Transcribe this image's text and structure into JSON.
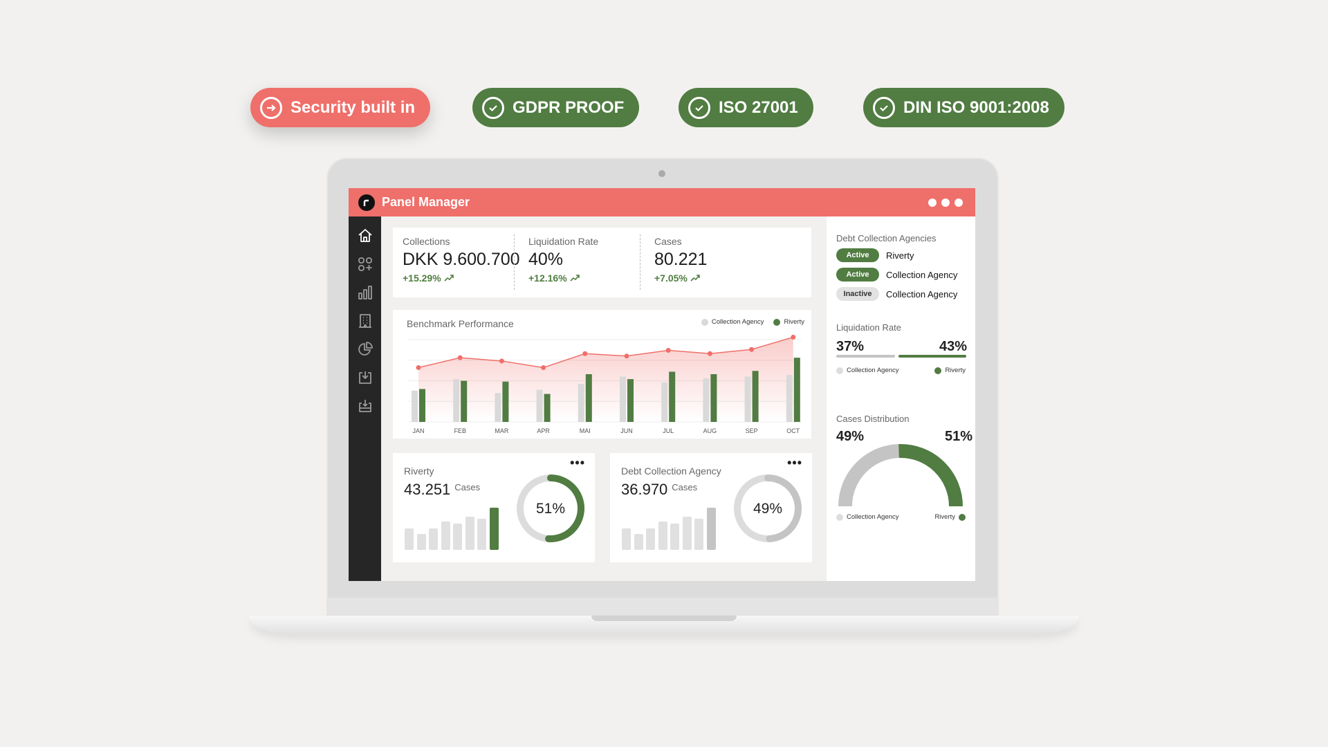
{
  "badges": [
    {
      "label": "Security built in",
      "icon": "arrow-right-circle-icon"
    },
    {
      "label": "GDPR PROOF",
      "icon": "check-circle-icon"
    },
    {
      "label": "ISO 27001",
      "icon": "check-circle-icon"
    },
    {
      "label": "DIN ISO 9001:2008",
      "icon": "check-circle-icon"
    }
  ],
  "colors": {
    "accent": "#ef6f6a",
    "green": "#517c42",
    "gray": "#d9d9d9",
    "sidebar": "#262626"
  },
  "app": {
    "title": "Panel Manager"
  },
  "sidebar": {
    "items": [
      "home-icon",
      "apps-add-icon",
      "bar-chart-icon",
      "building-icon",
      "pie-chart-icon",
      "download-tray-icon",
      "download-stack-icon"
    ]
  },
  "kpis": [
    {
      "label": "Collections",
      "value": "DKK 9.600.700",
      "change": "+15.29%"
    },
    {
      "label": "Liquidation Rate",
      "value": "40%",
      "change": "+12.16%"
    },
    {
      "label": "Cases",
      "value": "80.221",
      "change": "+7.05%"
    }
  ],
  "chart_data": {
    "type": "bar",
    "title": "Benchmark Performance",
    "categories": [
      "JAN",
      "FEB",
      "MAR",
      "APR",
      "MAI",
      "JUN",
      "JUL",
      "AUG",
      "SEP",
      "OCT"
    ],
    "series": [
      {
        "name": "Collection Agency",
        "type": "bar",
        "color": "#d9d9d9",
        "values": [
          38,
          52,
          35,
          39,
          46,
          55,
          48,
          53,
          55,
          57
        ]
      },
      {
        "name": "Riverty",
        "type": "bar",
        "color": "#517c42",
        "values": [
          40,
          50,
          49,
          34,
          58,
          52,
          61,
          58,
          62,
          78
        ]
      },
      {
        "type": "area-line",
        "color": "#ef6f6a",
        "values": [
          66,
          78,
          74,
          66,
          83,
          80,
          87,
          83,
          88,
          103
        ]
      }
    ],
    "ylim": [
      0,
      105
    ],
    "grid": true,
    "legend": "top-right"
  },
  "cards": [
    {
      "title": "Riverty",
      "value": "43.251",
      "unit": "Cases",
      "percent": 51,
      "percent_label": "51%",
      "bars": [
        92,
        70,
        92,
        122,
        112,
        142,
        134,
        182
      ],
      "color": "#517c42"
    },
    {
      "title": "Debt Collection Agency",
      "value": "36.970",
      "unit": "Cases",
      "percent": 49,
      "percent_label": "49%",
      "bars": [
        92,
        70,
        92,
        122,
        112,
        142,
        134,
        182
      ],
      "color": "#c4c4c4"
    }
  ],
  "right": {
    "agencies_title": "Debt Collection Agencies",
    "agencies": [
      {
        "status": "Active",
        "name": "Riverty"
      },
      {
        "status": "Active",
        "name": "Collection Agency"
      },
      {
        "status": "Inactive",
        "name": "Collection Agency"
      }
    ],
    "liq_title": "Liquidation Rate",
    "liq_left": "37%",
    "liq_right": "43%",
    "liq_left_value": 37,
    "liq_right_value": 43,
    "legend_ca": "Collection Agency",
    "legend_riverty": "Riverty",
    "dist_title": "Cases Distribution",
    "dist_left": "49%",
    "dist_right": "51%",
    "dist_left_value": 49,
    "dist_right_value": 51
  }
}
